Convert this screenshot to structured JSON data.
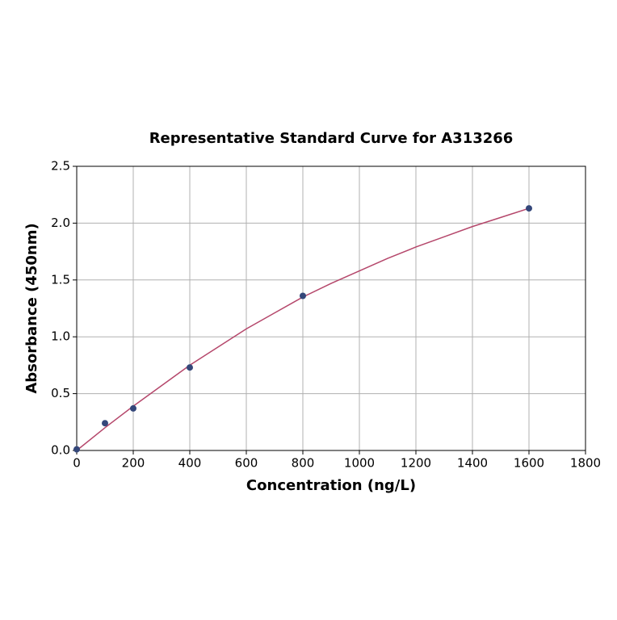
{
  "chart_data": {
    "type": "scatter",
    "title": "Representative Standard Curve for A313266",
    "xlabel": "Concentration (ng/L)",
    "ylabel": "Absorbance (450nm)",
    "points": {
      "color": "#34477a",
      "x": [
        0,
        100,
        200,
        400,
        800,
        1600
      ],
      "y": [
        0.01,
        0.24,
        0.37,
        0.73,
        1.36,
        2.13
      ]
    },
    "curve": {
      "color": "#b5476b",
      "x": [
        0,
        100,
        200,
        300,
        400,
        500,
        600,
        700,
        800,
        900,
        1000,
        1100,
        1200,
        1300,
        1400,
        1500,
        1600
      ],
      "y": [
        0,
        0.2,
        0.39,
        0.57,
        0.75,
        0.91,
        1.07,
        1.21,
        1.35,
        1.47,
        1.58,
        1.69,
        1.79,
        1.88,
        1.97,
        2.05,
        2.13
      ]
    },
    "xlim": [
      0,
      1800
    ],
    "ylim": [
      0,
      2.5
    ],
    "xticks": [
      0,
      200,
      400,
      600,
      800,
      1000,
      1200,
      1400,
      1600,
      1800
    ],
    "yticks": [
      {
        "value": 0,
        "label": "0.0"
      },
      0.5,
      {
        "value": 1,
        "label": "1.0"
      },
      1.5,
      {
        "value": 2,
        "label": "2.0"
      },
      2.5
    ],
    "grid": true
  }
}
